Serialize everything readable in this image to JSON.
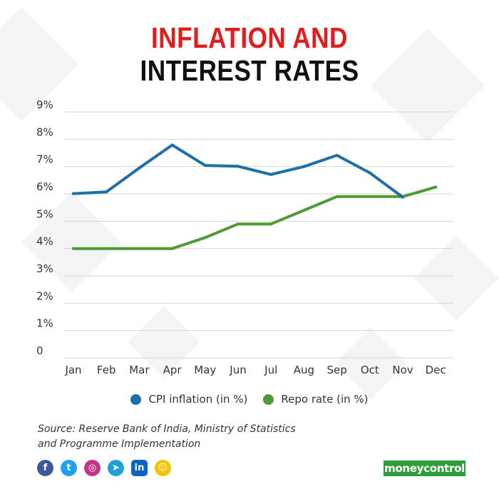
{
  "title_line1": "INFLATION AND",
  "title_line2": "INTEREST RATES",
  "colors": {
    "title_line1": "#e01e1e",
    "title_line2": "#111111",
    "cpi": "#1d6fa5",
    "repo": "#4f9a32",
    "brand_bg": "#2f9e3a"
  },
  "chart_data": {
    "type": "line",
    "categories": [
      "Jan",
      "Feb",
      "Mar",
      "Apr",
      "May",
      "Jun",
      "Jul",
      "Aug",
      "Sep",
      "Oct",
      "Nov",
      "Dec"
    ],
    "y_tick_labels": [
      "0",
      "1%",
      "2%",
      "3%",
      "4%",
      "5%",
      "6%",
      "7%",
      "8%",
      "9%"
    ],
    "ylim": [
      0,
      9
    ],
    "grid": true,
    "legend_position": "bottom",
    "series": [
      {
        "name": "CPI inflation (in %)",
        "color_key": "cpi",
        "values": [
          6.01,
          6.07,
          6.95,
          7.79,
          7.04,
          7.01,
          6.71,
          7.0,
          7.41,
          6.77,
          5.88,
          null
        ]
      },
      {
        "name": "Repo rate (in %)",
        "color_key": "repo",
        "values": [
          4.0,
          4.0,
          4.0,
          4.0,
          4.4,
          4.9,
          4.9,
          5.4,
          5.9,
          5.9,
          5.9,
          6.25
        ]
      }
    ]
  },
  "legend": {
    "cpi_label": "CPI inflation (in %)",
    "repo_label": "Repo rate (in %)"
  },
  "source_line1": "Source: Reserve Bank of India, Ministry of Statistics",
  "source_line2": "and Programme Implementation",
  "social_icons": [
    {
      "name": "facebook-icon",
      "glyph": "f",
      "color": "#3b5998"
    },
    {
      "name": "twitter-icon",
      "glyph": "t",
      "color": "#1da1f2"
    },
    {
      "name": "instagram-icon",
      "glyph": "◎",
      "color": "#c13584"
    },
    {
      "name": "telegram-icon",
      "glyph": "➤",
      "color": "#229ed9"
    },
    {
      "name": "linkedin-icon",
      "glyph": "in",
      "color": "#0a66c2"
    },
    {
      "name": "snapchat-icon",
      "glyph": "☺",
      "color": "#f5c400"
    }
  ],
  "brand": "moneycontrol"
}
